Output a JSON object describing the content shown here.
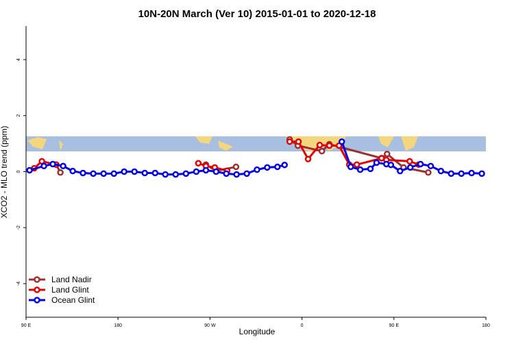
{
  "chart_data": {
    "type": "line",
    "title": "10N-20N March (Ver 10)   2015-01-01 to 2020-12-18",
    "xlabel": "Longitude",
    "ylabel": "XCO2 - MLO trend (ppm)",
    "xlim": [
      90,
      540
    ],
    "xticks": [
      {
        "value": 90,
        "label": "90 E"
      },
      {
        "value": 180,
        "label": "180"
      },
      {
        "value": 270,
        "label": "90 W"
      },
      {
        "value": 360,
        "label": "0"
      },
      {
        "value": 450,
        "label": "90 E"
      },
      {
        "value": 540,
        "label": "180"
      }
    ],
    "ylim": [
      -5.2,
      5.2
    ],
    "yticks": [
      -4,
      -2,
      0,
      2,
      4
    ],
    "legend": "bottom-left",
    "series": [
      {
        "name": "Land Nadir",
        "color": "#9b3030",
        "x": [
          119.5,
          123.6,
          200,
          266,
          276,
          295.5,
          320,
          348,
          356,
          379.5,
          386.8,
          437.9,
          443.3,
          459.4,
          483.6
        ],
        "values": [
          0.25,
          -0.03,
          null,
          0.25,
          0.03,
          0.17,
          null,
          1.15,
          0.93,
          0.73,
          0.98,
          0.48,
          0.63,
          0.15,
          -0.03
        ]
      },
      {
        "name": "Land Glint",
        "color": "#e00000",
        "x": [
          98,
          105.5,
          119.5,
          200,
          258.6,
          266,
          274.7,
          286.8,
          320,
          348,
          356.6,
          366,
          377.4,
          386.8,
          396.3,
          406.3,
          413.7,
          437.9,
          442.6,
          465.4,
          474.2
        ],
        "values": [
          0.12,
          0.37,
          0.25,
          null,
          0.3,
          0.2,
          0.15,
          0.03,
          null,
          1.07,
          1.07,
          0.45,
          0.95,
          0.93,
          0.93,
          0.25,
          0.25,
          0.48,
          0.42,
          0.37,
          0.25
        ]
      },
      {
        "name": "Ocean Glint",
        "color": "#0000e0",
        "x": [
          93.4,
          107.5,
          116.2,
          126.3,
          135.7,
          145.7,
          155.8,
          165.9,
          176,
          186,
          196.1,
          206.2,
          216.3,
          226.3,
          236.4,
          246.5,
          256.6,
          266,
          276,
          286,
          296,
          306,
          316,
          326,
          336,
          343,
          370,
          399,
          407.7,
          417,
          427,
          433,
          442.6,
          447,
          456,
          466,
          476,
          486,
          496,
          506,
          516,
          526,
          536
        ],
        "values": [
          0.05,
          0.2,
          0.27,
          0.2,
          0.02,
          -0.05,
          -0.07,
          -0.07,
          -0.07,
          0,
          0,
          -0.05,
          -0.05,
          -0.1,
          -0.1,
          -0.07,
          0,
          0.05,
          0,
          -0.07,
          -0.1,
          -0.07,
          0.07,
          0.15,
          0.17,
          0.24,
          null,
          1.07,
          0.17,
          0.07,
          0.1,
          0.32,
          0.27,
          0.24,
          0.02,
          0.15,
          0.27,
          0.2,
          0.02,
          -0.07,
          -0.07,
          -0.05,
          -0.07
        ]
      }
    ]
  }
}
